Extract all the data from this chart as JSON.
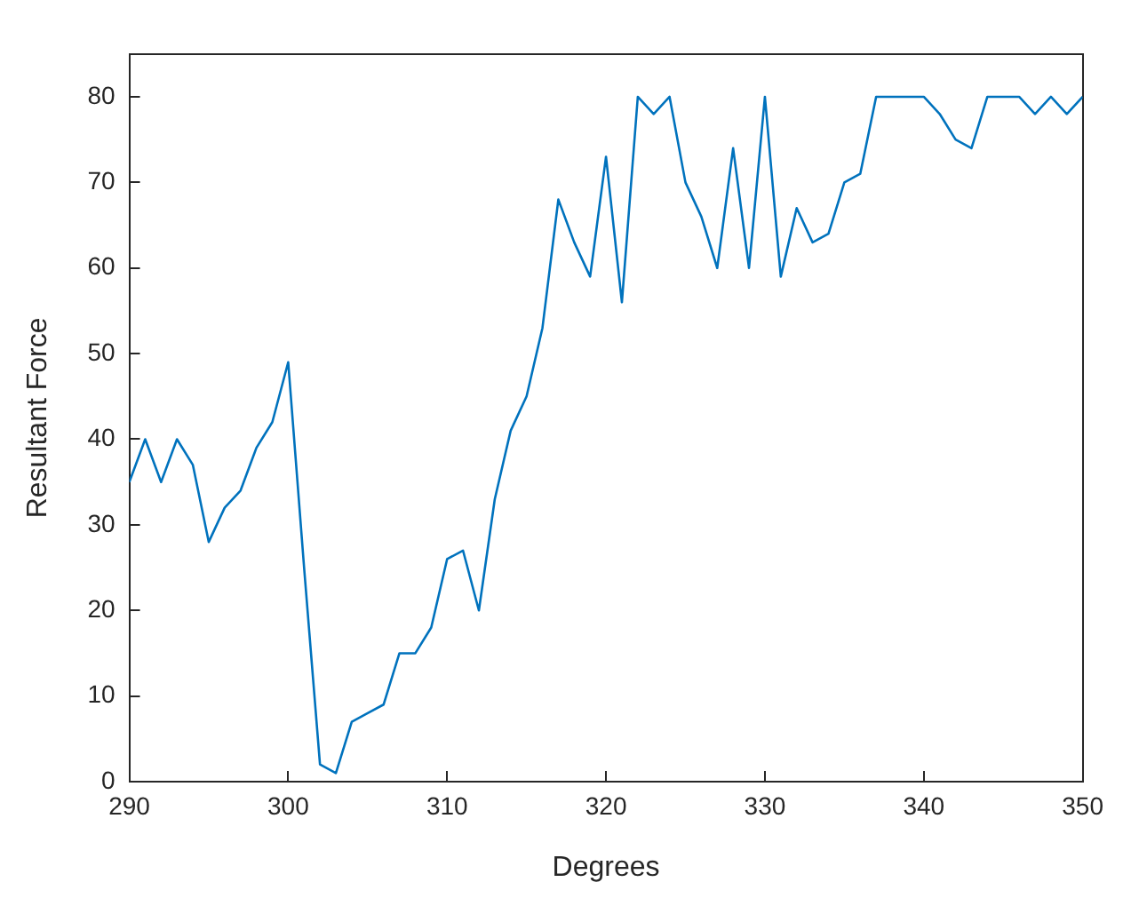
{
  "chart_data": {
    "type": "line",
    "xlabel": "Degrees",
    "ylabel": "Resultant Force",
    "x": [
      290,
      291,
      292,
      293,
      294,
      295,
      296,
      297,
      298,
      299,
      300,
      301,
      302,
      303,
      304,
      305,
      306,
      307,
      308,
      309,
      310,
      311,
      312,
      313,
      314,
      315,
      316,
      317,
      318,
      319,
      320,
      321,
      322,
      323,
      324,
      325,
      326,
      327,
      328,
      329,
      330,
      331,
      332,
      333,
      334,
      335,
      336,
      337,
      338,
      339,
      340,
      341,
      342,
      343,
      344,
      345,
      346,
      347,
      348,
      349,
      350
    ],
    "series": [
      {
        "color": "#0072bd",
        "values": [
          35,
          40,
          35,
          40,
          37,
          28,
          32,
          34,
          39,
          42,
          49,
          25,
          2,
          1,
          7,
          8,
          9,
          15,
          15,
          18,
          26,
          27,
          20,
          33,
          41,
          45,
          53,
          68,
          63,
          59,
          73,
          56,
          80,
          78,
          80,
          70,
          66,
          60,
          74,
          60,
          80,
          59,
          67,
          63,
          64,
          70,
          71,
          80,
          80,
          80,
          80,
          78,
          75,
          74,
          80,
          80,
          80,
          78,
          80,
          78,
          80
        ]
      }
    ],
    "xlim": [
      290,
      350
    ],
    "xticks": [
      290,
      300,
      310,
      320,
      330,
      340,
      350
    ],
    "ylim": [
      0,
      85
    ],
    "yticks": [
      0,
      10,
      20,
      30,
      40,
      50,
      60,
      70,
      80
    ],
    "grid": false,
    "legend": false,
    "marker": "none",
    "line_style": "solid"
  }
}
